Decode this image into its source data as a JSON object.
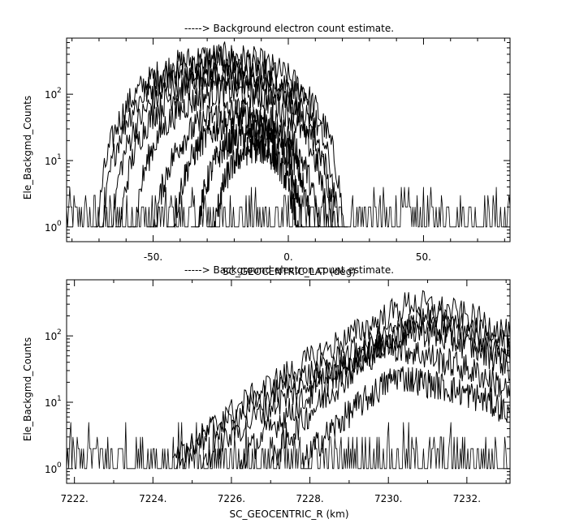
{
  "chart_data": [
    {
      "type": "line",
      "title": "-----> Background electron count estimate.",
      "xlabel": "SC_GEOCENTRIC_LAT (deg)",
      "ylabel": "Ele_Backgmd_Counts",
      "xlim": [
        -82,
        82
      ],
      "ylim": [
        0.6,
        700
      ],
      "yscale": "log",
      "grid": false,
      "color": "#000000",
      "x_ticks": [
        -50,
        0,
        50
      ],
      "x_tick_labels": [
        "-50.",
        "0.",
        "50."
      ],
      "y_ticks": [
        1,
        10,
        100
      ],
      "y_tick_base": [
        "10",
        "10",
        "10"
      ],
      "y_tick_exp": [
        "0",
        "1",
        "2"
      ],
      "noise_floor": {
        "x_range": [
          -82,
          82
        ],
        "values": [
          1,
          2,
          3,
          4
        ]
      },
      "series": [
        {
          "center": -25,
          "half_width": 47,
          "peak": 370
        },
        {
          "center": -25,
          "half_width": 45,
          "peak": 300
        },
        {
          "center": -24,
          "half_width": 43,
          "peak": 210
        },
        {
          "center": -23,
          "half_width": 41,
          "peak": 170
        },
        {
          "center": -21,
          "half_width": 38,
          "peak": 110
        },
        {
          "center": -19,
          "half_width": 33,
          "peak": 55
        },
        {
          "center": -17,
          "half_width": 28,
          "peak": 40
        },
        {
          "center": -14,
          "half_width": 22,
          "peak": 25
        },
        {
          "center": -12,
          "half_width": 18,
          "peak": 15
        }
      ]
    },
    {
      "type": "line",
      "title": "-----> Background electron count estimate.",
      "xlabel": "SC_GEOCENTRIC_R (km)",
      "ylabel": "Ele_Backgmd_Counts",
      "xlim": [
        7221.8,
        7233.1
      ],
      "ylim": [
        0.6,
        700
      ],
      "yscale": "log",
      "grid": false,
      "color": "#000000",
      "x_ticks": [
        7222,
        7224,
        7226,
        7228,
        7230,
        7232
      ],
      "x_tick_labels": [
        "7222.",
        "7224.",
        "7226.",
        "7228.",
        "7230.",
        "7232."
      ],
      "y_ticks": [
        1,
        10,
        100
      ],
      "y_tick_base": [
        "10",
        "10",
        "10"
      ],
      "y_tick_exp": [
        "0",
        "1",
        "2"
      ],
      "noise_floor": {
        "x_range": [
          7221.8,
          7233.1
        ],
        "values": [
          1,
          2,
          3,
          4,
          5
        ]
      },
      "series": [
        {
          "x_start": 7224.6,
          "x_peak": 7230.6,
          "x_end": 7233.1,
          "peak": 320,
          "end_value": 90
        },
        {
          "x_start": 7224.5,
          "x_peak": 7231.0,
          "x_end": 7233.1,
          "peak": 190,
          "end_value": 60
        },
        {
          "x_start": 7225.2,
          "x_peak": 7230.9,
          "x_end": 7233.1,
          "peak": 160,
          "end_value": 40
        },
        {
          "x_start": 7226.2,
          "x_peak": 7230.5,
          "x_end": 7233.1,
          "peak": 130,
          "end_value": 30
        },
        {
          "x_start": 7227.0,
          "x_peak": 7229.9,
          "x_end": 7233.1,
          "peak": 75,
          "end_value": 12
        },
        {
          "x_start": 7227.8,
          "x_peak": 7230.2,
          "x_end": 7233.1,
          "peak": 25,
          "end_value": 6
        }
      ]
    }
  ]
}
